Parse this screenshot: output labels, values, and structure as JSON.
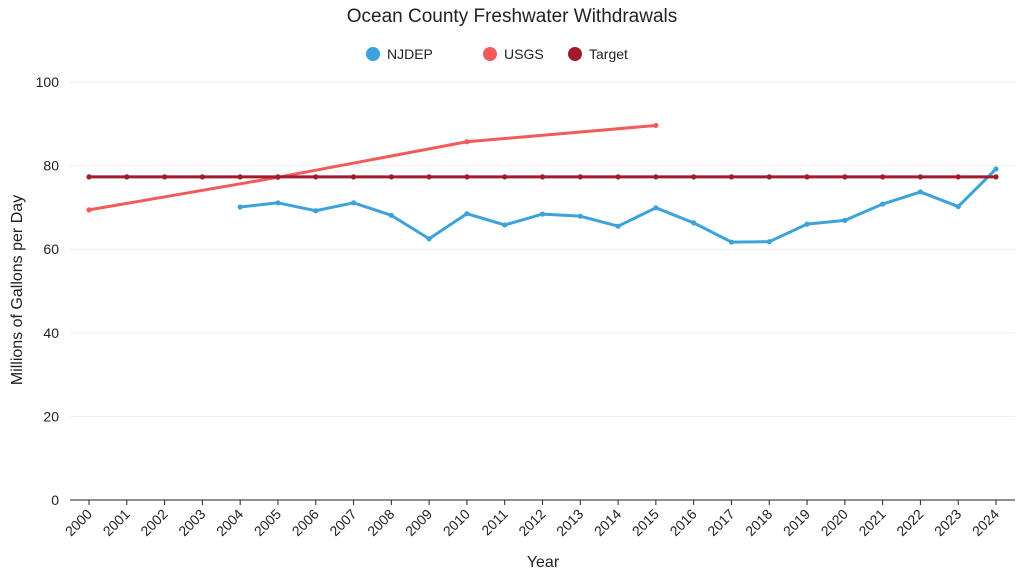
{
  "chart_data": {
    "type": "line",
    "title": "Ocean County Freshwater Withdrawals",
    "xlabel": "Year",
    "ylabel": "Millions of Gallons per Day",
    "ylim": [
      0,
      100
    ],
    "yticks": [
      0,
      20,
      40,
      60,
      80,
      100
    ],
    "grid": true,
    "legend_position": "top-center",
    "x": [
      2000,
      2001,
      2002,
      2003,
      2004,
      2005,
      2006,
      2007,
      2008,
      2009,
      2010,
      2011,
      2012,
      2013,
      2014,
      2015,
      2016,
      2017,
      2018,
      2019,
      2020,
      2021,
      2022,
      2023,
      2024
    ],
    "series": [
      {
        "name": "NJDEP",
        "color": "#3ba3d9",
        "x": [
          2004,
          2005,
          2006,
          2007,
          2008,
          2009,
          2010,
          2011,
          2012,
          2013,
          2014,
          2015,
          2016,
          2017,
          2018,
          2019,
          2020,
          2021,
          2022,
          2023,
          2024
        ],
        "values": [
          70.1,
          71.1,
          69.2,
          71.1,
          68.1,
          62.5,
          68.5,
          65.8,
          68.4,
          67.9,
          65.5,
          69.9,
          66.3,
          61.7,
          61.8,
          66.0,
          66.9,
          70.8,
          73.7,
          70.2,
          79.2
        ]
      },
      {
        "name": "USGS",
        "color": "#f15b5b",
        "x": [
          2000,
          2005,
          2010,
          2015
        ],
        "values": [
          69.4,
          77.2,
          85.7,
          89.6
        ]
      },
      {
        "name": "Target",
        "color": "#a01b2c",
        "x": [
          2000,
          2001,
          2002,
          2003,
          2004,
          2005,
          2006,
          2007,
          2008,
          2009,
          2010,
          2011,
          2012,
          2013,
          2014,
          2015,
          2016,
          2017,
          2018,
          2019,
          2020,
          2021,
          2022,
          2023,
          2024
        ],
        "values": [
          77.3,
          77.3,
          77.3,
          77.3,
          77.3,
          77.3,
          77.3,
          77.3,
          77.3,
          77.3,
          77.3,
          77.3,
          77.3,
          77.3,
          77.3,
          77.3,
          77.3,
          77.3,
          77.3,
          77.3,
          77.3,
          77.3,
          77.3,
          77.3,
          77.3
        ]
      }
    ]
  }
}
